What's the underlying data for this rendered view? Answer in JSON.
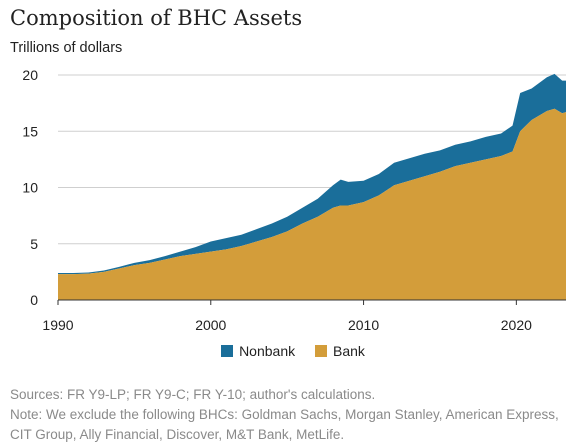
{
  "chart_data": {
    "type": "area",
    "stacked": true,
    "title": "Composition of BHC Assets",
    "ylabel": "Trillions of dollars",
    "xlim": [
      1990,
      2023.25
    ],
    "ylim": [
      0,
      20
    ],
    "yticks": [
      0,
      5,
      10,
      15,
      20
    ],
    "xticks": [
      1990,
      2000,
      2010,
      2020
    ],
    "grid": "horizontal",
    "legend_position": "bottom",
    "x": [
      1990,
      1991,
      1992,
      1993,
      1994,
      1995,
      1996,
      1997,
      1998,
      1999,
      2000,
      2001,
      2002,
      2003,
      2004,
      2005,
      2006,
      2007,
      2008,
      2008.5,
      2009,
      2010,
      2011,
      2012,
      2013,
      2014,
      2015,
      2016,
      2017,
      2018,
      2019,
      2019.75,
      2020.25,
      2021,
      2022,
      2022.5,
      2023,
      2023.25
    ],
    "series": [
      {
        "name": "Bank",
        "color": "#d39d3a",
        "values": [
          2.3,
          2.3,
          2.35,
          2.5,
          2.8,
          3.1,
          3.3,
          3.6,
          3.9,
          4.1,
          4.3,
          4.5,
          4.8,
          5.2,
          5.6,
          6.1,
          6.8,
          7.4,
          8.2,
          8.4,
          8.4,
          8.7,
          9.3,
          10.2,
          10.6,
          11.0,
          11.4,
          11.9,
          12.2,
          12.5,
          12.8,
          13.2,
          15.0,
          16.0,
          16.8,
          17.0,
          16.6,
          16.7
        ]
      },
      {
        "name": "Nonbank",
        "color": "#1a6e9a",
        "values": [
          0.1,
          0.1,
          0.1,
          0.12,
          0.15,
          0.2,
          0.25,
          0.3,
          0.4,
          0.6,
          0.9,
          1.0,
          1.0,
          1.1,
          1.2,
          1.3,
          1.4,
          1.6,
          2.0,
          2.3,
          2.1,
          1.9,
          1.9,
          2.0,
          2.0,
          2.0,
          1.9,
          1.9,
          1.9,
          2.0,
          2.0,
          2.3,
          3.4,
          2.8,
          3.0,
          3.1,
          2.9,
          2.8
        ]
      }
    ]
  },
  "legend": [
    {
      "label": "Nonbank",
      "color": "#1a6e9a"
    },
    {
      "label": "Bank",
      "color": "#d39d3a"
    }
  ],
  "notes": {
    "sources": "Sources: FR Y9-LP; FR Y9-C; FR Y-10; author's calculations.",
    "note_line1": "Note: We exclude the following BHCs: Goldman Sachs, Morgan Stanley, American Express,",
    "note_line2": "CIT Group, Ally Financial, Discover, M&T Bank, MetLife."
  }
}
